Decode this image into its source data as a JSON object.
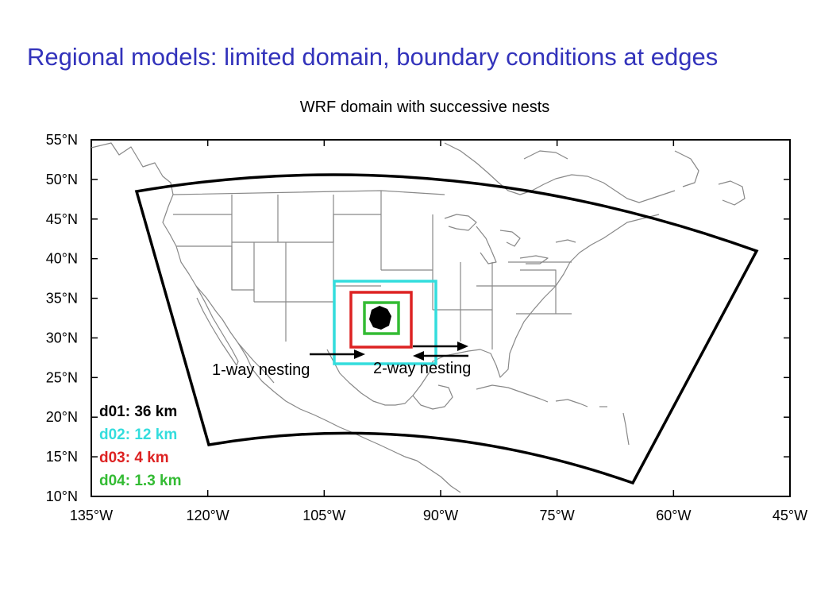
{
  "slide": {
    "title": "Regional models: limited domain, boundary conditions at edges",
    "subtitle": "WRF domain with successive nests"
  },
  "map": {
    "latitude_labels": [
      "55°N",
      "50°N",
      "45°N",
      "40°N",
      "35°N",
      "30°N",
      "25°N",
      "20°N",
      "15°N",
      "10°N"
    ],
    "longitude_labels": [
      "135°W",
      "120°W",
      "105°W",
      "90°W",
      "75°W",
      "60°W",
      "45°W"
    ],
    "lat_range": [
      10,
      55
    ],
    "lon_range": [
      -135,
      -45
    ],
    "domains": [
      {
        "label": "d01: 36 km",
        "color": "#000000"
      },
      {
        "label": "d02: 12 km",
        "color": "#33dddd"
      },
      {
        "label": "d03: 4 km",
        "color": "#dd2222"
      },
      {
        "label": "d04: 1.3 km",
        "color": "#33bb33"
      }
    ],
    "annotations": {
      "one_way": "1-way nesting",
      "two_way": "2-way nesting"
    }
  }
}
